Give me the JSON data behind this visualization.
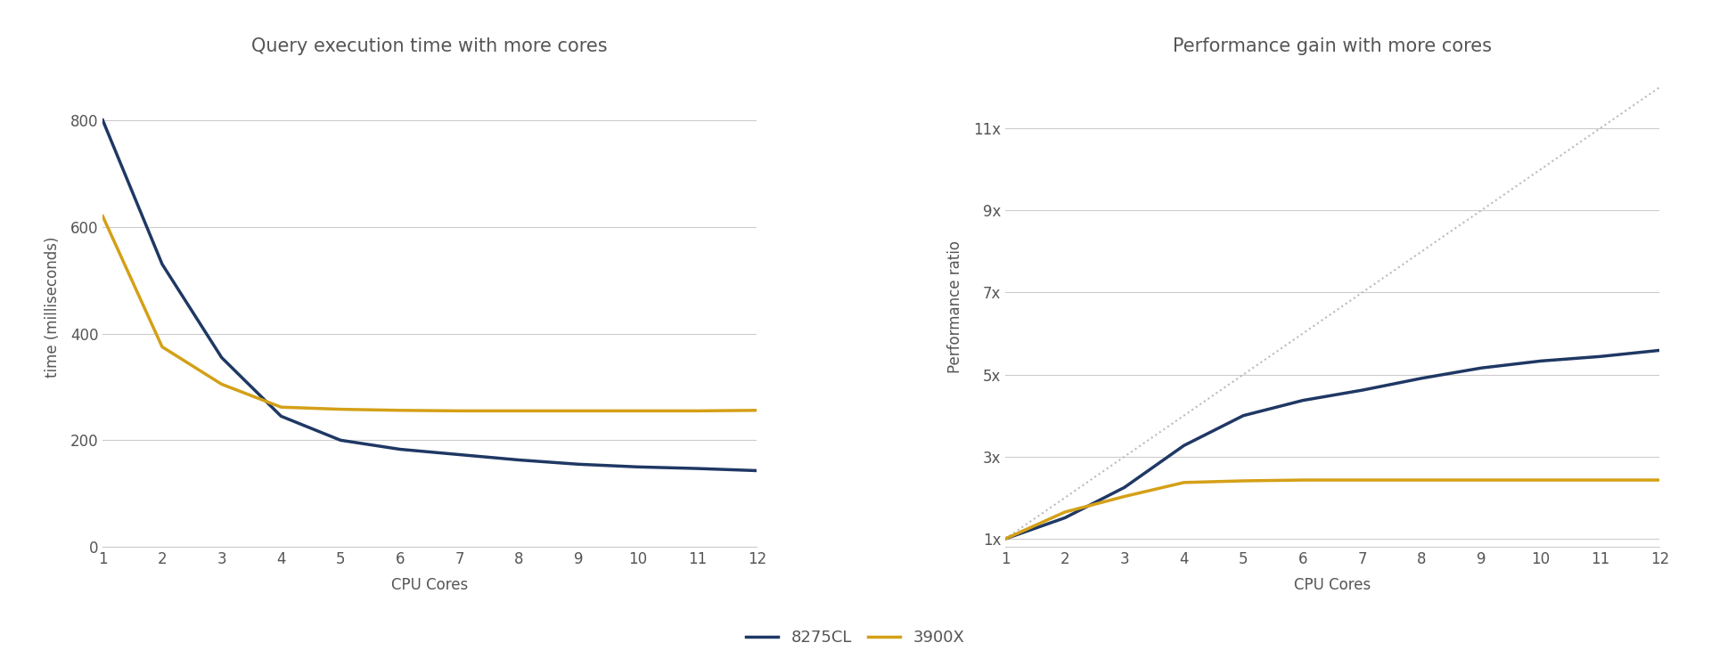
{
  "cores": [
    1,
    2,
    3,
    4,
    5,
    6,
    7,
    8,
    9,
    10,
    11,
    12
  ],
  "exec_8275CL": [
    800,
    530,
    355,
    245,
    200,
    183,
    173,
    163,
    155,
    150,
    147,
    143
  ],
  "exec_3900X": [
    620,
    375,
    305,
    262,
    258,
    256,
    255,
    255,
    255,
    255,
    255,
    256
  ],
  "perf_8275CL": [
    1.0,
    1.51,
    2.25,
    3.27,
    4.0,
    4.37,
    4.62,
    4.91,
    5.16,
    5.33,
    5.44,
    5.59
  ],
  "perf_3900X": [
    1.0,
    1.65,
    2.03,
    2.37,
    2.41,
    2.43,
    2.43,
    2.43,
    2.43,
    2.43,
    2.43,
    2.43
  ],
  "color_8275CL": "#1f3864",
  "color_3900X": "#d4a017",
  "title_left": "Query execution time with more cores",
  "title_right": "Performance gain with more cores",
  "xlabel": "CPU Cores",
  "ylabel_left": "time (milliseconds)",
  "ylabel_right": "Performance ratio",
  "yticks_left": [
    0,
    200,
    400,
    600,
    800
  ],
  "yticks_right_vals": [
    1,
    3,
    5,
    7,
    9,
    11
  ],
  "yticks_right_labels": [
    "1x",
    "3x",
    "5x",
    "7x",
    "9x",
    "11x"
  ],
  "ylim_left": [
    0,
    900
  ],
  "ylim_right": [
    0.8,
    12.5
  ],
  "xlim": [
    1,
    12
  ],
  "legend_labels": [
    "8275CL",
    "3900X"
  ],
  "bg_color": "#ffffff",
  "axes_color": "#cccccc",
  "text_color": "#555555",
  "dotted_line_color": "#bbbbbb",
  "title_fontsize": 15,
  "label_fontsize": 12,
  "tick_fontsize": 12,
  "legend_fontsize": 13,
  "line_width": 2.5
}
